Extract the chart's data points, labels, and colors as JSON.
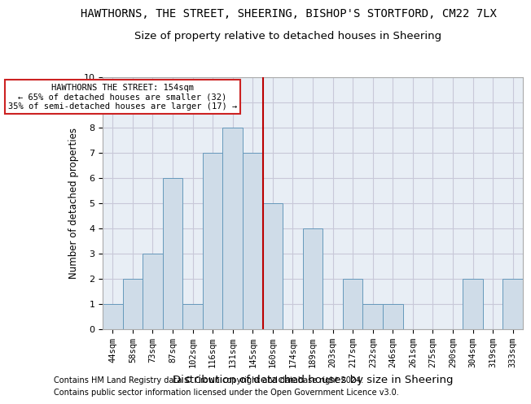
{
  "title": "HAWTHORNS, THE STREET, SHEERING, BISHOP'S STORTFORD, CM22 7LX",
  "subtitle": "Size of property relative to detached houses in Sheering",
  "xlabel": "Distribution of detached houses by size in Sheering",
  "ylabel": "Number of detached properties",
  "bar_labels": [
    "44sqm",
    "58sqm",
    "73sqm",
    "87sqm",
    "102sqm",
    "116sqm",
    "131sqm",
    "145sqm",
    "160sqm",
    "174sqm",
    "189sqm",
    "203sqm",
    "217sqm",
    "232sqm",
    "246sqm",
    "261sqm",
    "275sqm",
    "290sqm",
    "304sqm",
    "319sqm",
    "333sqm"
  ],
  "bar_values": [
    1,
    2,
    3,
    6,
    1,
    7,
    8,
    7,
    5,
    0,
    4,
    0,
    2,
    1,
    1,
    0,
    0,
    0,
    2,
    0,
    2
  ],
  "bar_color": "#cfdce8",
  "bar_edge_color": "#6699bb",
  "vline_index": 8,
  "vline_color": "#bb0000",
  "annotation_text": "HAWTHORNS THE STREET: 154sqm\n← 65% of detached houses are smaller (32)\n35% of semi-detached houses are larger (17) →",
  "annotation_box_facecolor": "#ffffff",
  "annotation_box_edgecolor": "#cc2222",
  "ylim": [
    0,
    10
  ],
  "yticks": [
    0,
    1,
    2,
    3,
    4,
    5,
    6,
    7,
    8,
    9,
    10
  ],
  "grid_color": "#c8c8d8",
  "bg_color": "#e8eef5",
  "footer1": "Contains HM Land Registry data © Crown copyright and database right 2024.",
  "footer2": "Contains public sector information licensed under the Open Government Licence v3.0.",
  "title_fontsize": 10,
  "subtitle_fontsize": 9.5,
  "xlabel_fontsize": 9.5,
  "ylabel_fontsize": 8.5,
  "tick_fontsize": 7.5,
  "annotation_fontsize": 7.5,
  "footer_fontsize": 7
}
